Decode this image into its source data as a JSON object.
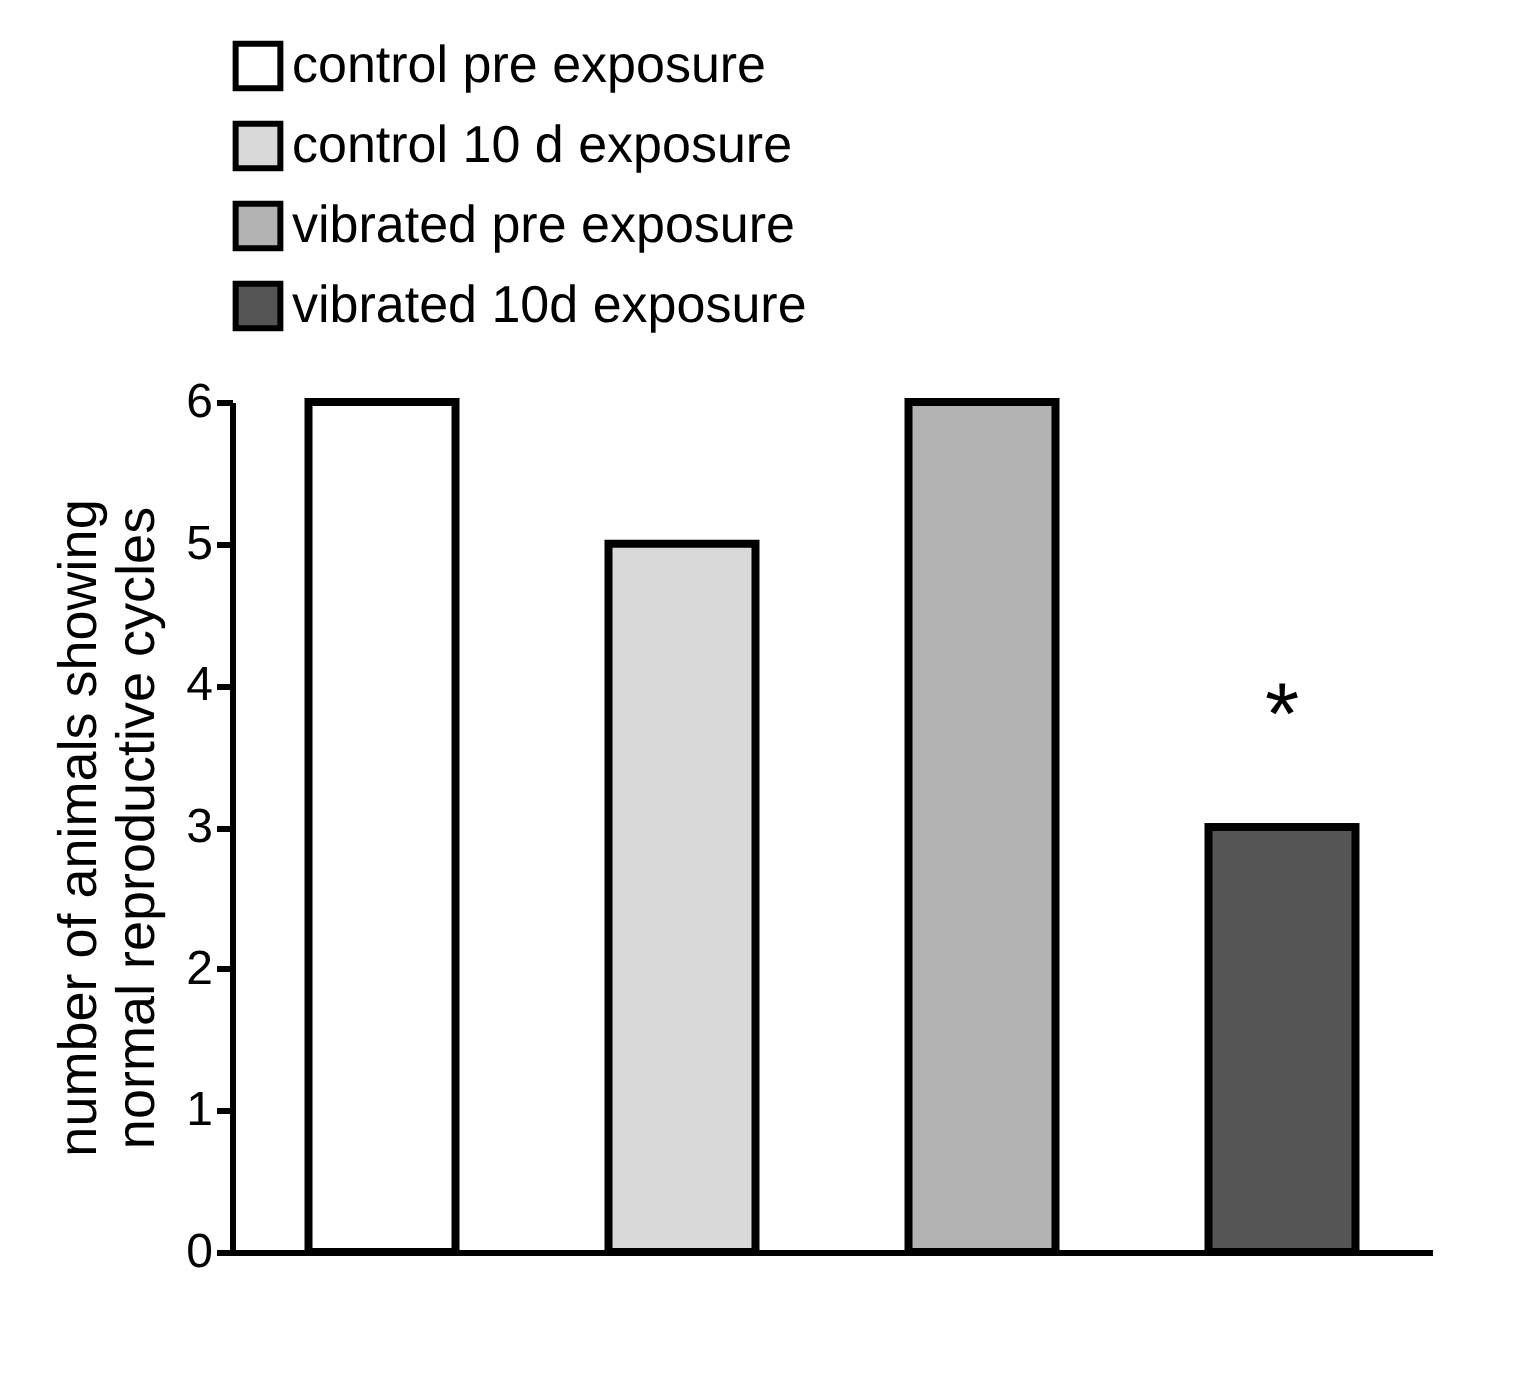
{
  "chart_data": {
    "type": "bar",
    "ylabel": "number of animals showing\nnormal reproductive cycles",
    "categories": [
      null,
      null,
      null,
      null
    ],
    "series": [
      {
        "name": "control pre exposure",
        "color": "#ffffff",
        "values": [
          6,
          null,
          null,
          null
        ]
      },
      {
        "name": "control 10 d exposure",
        "color": "#d9d9d9",
        "values": [
          null,
          5,
          null,
          null
        ]
      },
      {
        "name": "vibrated pre exposure",
        "color": "#b3b3b3",
        "values": [
          null,
          null,
          6,
          null
        ]
      },
      {
        "name": "vibrated 10d exposure",
        "color": "#555555",
        "values": [
          null,
          null,
          null,
          3
        ]
      }
    ],
    "annotations": [
      "*"
    ],
    "ylim": [
      0,
      6
    ],
    "yticks": [
      0,
      1,
      2,
      3,
      4,
      5,
      6
    ],
    "legend": "top",
    "grid": false
  }
}
